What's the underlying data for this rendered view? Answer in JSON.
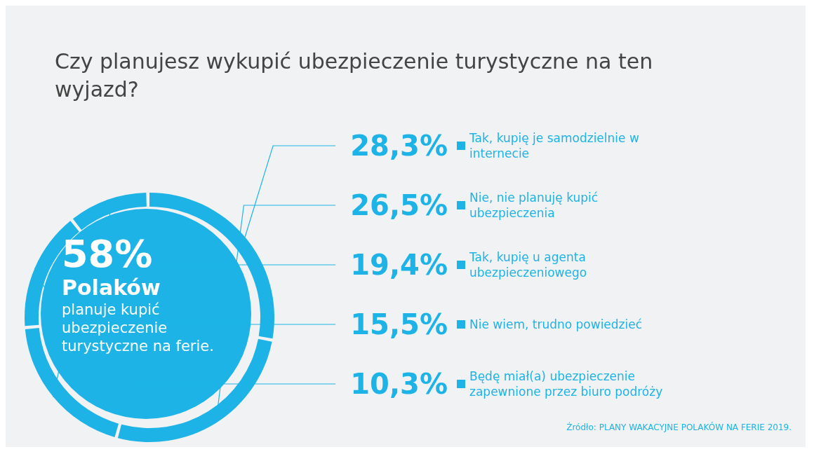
{
  "chart_data": {
    "type": "donut",
    "title": "Czy planujesz wykupić ubezpieczenie turystyczne na ten wyjazd?",
    "categories": [
      "Tak, kupię je samodzielnie w internecie",
      "Nie, nie planuję kupić ubezpieczenia",
      "Tak, kupię u agenta ubezpieczeniowego",
      "Nie wiem, trudno powiedzieć",
      "Będę miał(a) ubezpieczenie zapewnione przez biuro podróży"
    ],
    "values": [
      28.3,
      26.5,
      19.4,
      15.5,
      10.3
    ],
    "value_labels": [
      "28,3%",
      "26,5%",
      "19,4%",
      "15,5%",
      "10,3%"
    ],
    "colors": [
      "#1db3e7",
      "#1db3e7",
      "#1db3e7",
      "#1db3e7",
      "#1db3e7"
    ],
    "legend": "right",
    "annotations": [
      "58%",
      "Polaków",
      "planuje kupić ubezpieczenie turystyczne na ferie.",
      "Źródło: PLANY WAKACYJNE POLAKÓW NA FERIE 2019."
    ]
  }
}
